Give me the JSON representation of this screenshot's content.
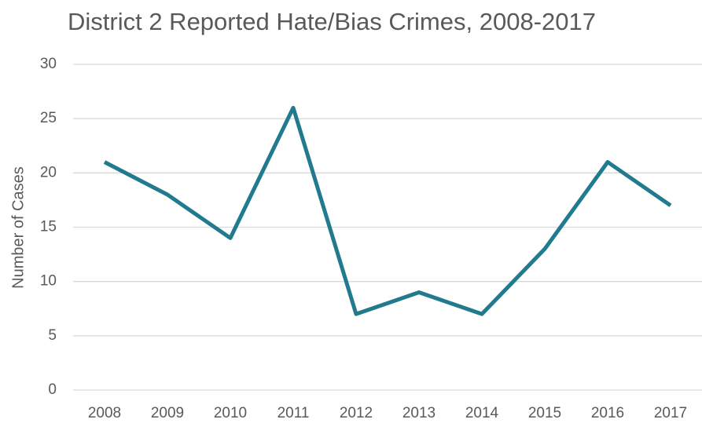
{
  "chart_data": {
    "type": "line",
    "title": "District 2 Reported Hate/Bias Crimes, 2008-2017",
    "y_label": "Number of Cases",
    "categories": [
      "2008",
      "2009",
      "2010",
      "2011",
      "2012",
      "2013",
      "2014",
      "2015",
      "2016",
      "2017"
    ],
    "values": [
      21,
      18,
      14,
      26,
      7,
      9,
      7,
      13,
      21,
      17
    ],
    "color": "#217a8d",
    "ylim": [
      0,
      30
    ],
    "yticks": [
      0,
      5,
      10,
      15,
      20,
      25,
      30
    ],
    "grid": true
  }
}
